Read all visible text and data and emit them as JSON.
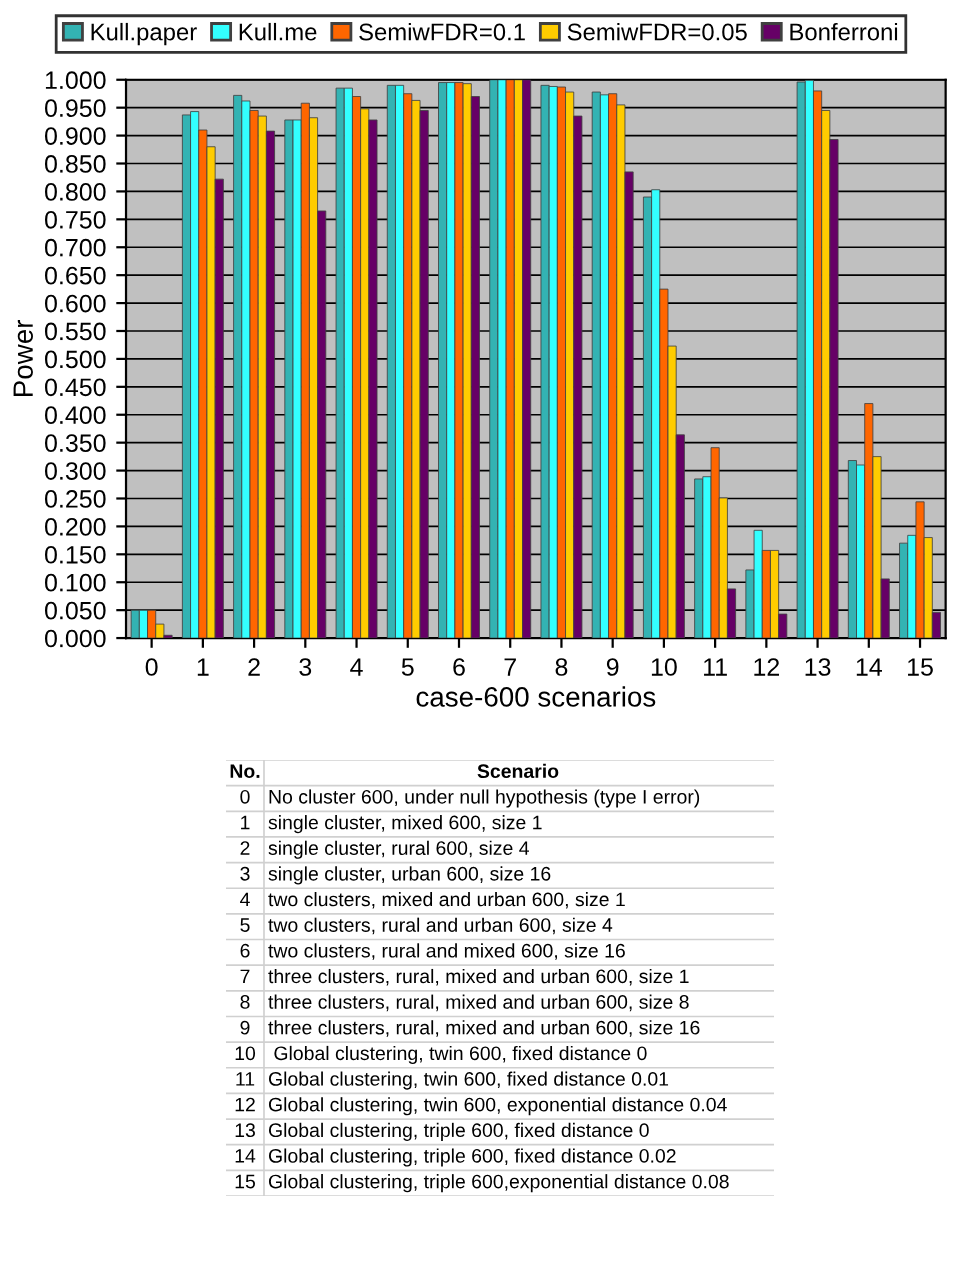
{
  "chart_data": {
    "type": "bar",
    "xlabel": "case-600 scenarios",
    "ylabel": "Power",
    "categories": [
      "0",
      "1",
      "2",
      "3",
      "4",
      "5",
      "6",
      "7",
      "8",
      "9",
      "10",
      "11",
      "12",
      "13",
      "14",
      "15"
    ],
    "series": [
      {
        "name": "Kull.paper",
        "color": "#33b3b3",
        "values": [
          0.05,
          0.937,
          0.972,
          0.928,
          0.985,
          0.99,
          0.995,
          1.0,
          0.99,
          0.978,
          0.79,
          0.285,
          0.122,
          0.996,
          0.318,
          0.17
        ]
      },
      {
        "name": "Kull.me",
        "color": "#33ffff",
        "values": [
          0.05,
          0.943,
          0.962,
          0.928,
          0.985,
          0.99,
          0.995,
          1.0,
          0.988,
          0.973,
          0.803,
          0.289,
          0.193,
          0.999,
          0.31,
          0.184
        ]
      },
      {
        "name": "SemiwFDR=0.1",
        "color": "#ff6600",
        "values": [
          0.05,
          0.91,
          0.945,
          0.958,
          0.97,
          0.975,
          0.995,
          1.0,
          0.987,
          0.975,
          0.625,
          0.341,
          0.157,
          0.98,
          0.42,
          0.244
        ]
      },
      {
        "name": "SemiwFDR=0.05",
        "color": "#ffcc00",
        "values": [
          0.025,
          0.88,
          0.935,
          0.932,
          0.948,
          0.963,
          0.993,
          1.0,
          0.978,
          0.955,
          0.523,
          0.251,
          0.157,
          0.945,
          0.325,
          0.18
        ]
      },
      {
        "name": "Bonferroni",
        "color": "#660066",
        "values": [
          0.005,
          0.822,
          0.908,
          0.765,
          0.928,
          0.945,
          0.97,
          1.0,
          0.935,
          0.835,
          0.364,
          0.088,
          0.043,
          0.893,
          0.106,
          0.046
        ]
      }
    ],
    "ylim": [
      0,
      1
    ],
    "yticks": [
      {
        "value": 0,
        "label": "0.000"
      },
      {
        "value": 0.05,
        "label": "0.050"
      },
      {
        "value": 0.1,
        "label": "0.100"
      },
      {
        "value": 0.15,
        "label": "0.150"
      },
      {
        "value": 0.2,
        "label": "0.200"
      },
      {
        "value": 0.25,
        "label": "0.250"
      },
      {
        "value": 0.3,
        "label": "0.300"
      },
      {
        "value": 0.35,
        "label": "0.350"
      },
      {
        "value": 0.4,
        "label": "0.400"
      },
      {
        "value": 0.45,
        "label": "0.450"
      },
      {
        "value": 0.5,
        "label": "0.500"
      },
      {
        "value": 0.55,
        "label": "0.550"
      },
      {
        "value": 0.6,
        "label": "0.600"
      },
      {
        "value": 0.65,
        "label": "0.650"
      },
      {
        "value": 0.7,
        "label": "0.700"
      },
      {
        "value": 0.75,
        "label": "0.750"
      },
      {
        "value": 0.8,
        "label": "0.800"
      },
      {
        "value": 0.85,
        "label": "0.850"
      },
      {
        "value": 0.9,
        "label": "0.900"
      },
      {
        "value": 0.95,
        "label": "0.950"
      },
      {
        "value": 1,
        "label": "1.000"
      }
    ],
    "grid": "y",
    "legend": "top",
    "annotations": [
      "No.",
      "Scenario",
      "No cluster 600, under null hypothesis (type I error)",
      "single cluster, mixed 600, size 1",
      "single cluster, rural 600, size 4",
      "single cluster, urban 600, size 16",
      "two clusters, mixed and urban 600, size 1",
      "two clusters, rural and urban 600, size 4",
      "two clusters, rural and mixed 600, size 16",
      "three clusters, rural, mixed and urban 600, size 1",
      "three clusters, rural, mixed and urban 600, size 8",
      "three clusters, rural, mixed and urban 600, size 16",
      " Global clustering, twin 600, fixed distance 0",
      "Global clustering, twin 600, fixed distance 0.01",
      "Global clustering, twin 600, exponential distance 0.04",
      "Global clustering, triple 600, fixed distance 0",
      "Global clustering, triple 600, fixed distance 0.02",
      "Global clustering, triple 600,exponential distance 0.08"
    ]
  }
}
